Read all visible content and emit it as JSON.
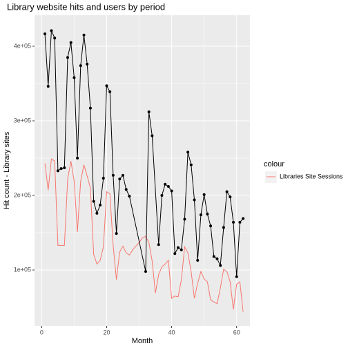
{
  "chart_data": {
    "type": "line",
    "title": "Library website hits and users by period",
    "x_label": "Month",
    "y_label": "Hit count - Library sites",
    "legend_title": "colour",
    "xlim": [
      -2.2,
      64.1
    ],
    "xticks": [
      0,
      20,
      40,
      60
    ],
    "ylim": [
      25000,
      441667
    ],
    "yticks": [
      {
        "value": 100000,
        "label": "1e+05"
      },
      {
        "value": 200000,
        "label": "2e+05"
      },
      {
        "value": 300000,
        "label": "3e+05"
      },
      {
        "value": 400000,
        "label": "4e+05"
      }
    ],
    "grid": true,
    "series": [
      {
        "color": "#000000",
        "points": true,
        "x": [
          1,
          2,
          3,
          4,
          5,
          6,
          7,
          8,
          9,
          10,
          11,
          12,
          13,
          14,
          15,
          16,
          17,
          18,
          19,
          20,
          21,
          22,
          23,
          24,
          25,
          26,
          27,
          32,
          33,
          34,
          36,
          37,
          38,
          39,
          40,
          41,
          42,
          43,
          44,
          45,
          46,
          47,
          48,
          49,
          50,
          51,
          52,
          53,
          54,
          55,
          56,
          57,
          58,
          59,
          60,
          61,
          62
        ],
        "values": [
          416700,
          346300,
          421000,
          411000,
          233000,
          236000,
          237000,
          385000,
          405000,
          358000,
          250000,
          374000,
          415000,
          376000,
          317000,
          192000,
          176000,
          187000,
          223000,
          347000,
          339000,
          227000,
          149000,
          222000,
          227000,
          208000,
          199000,
          98000,
          312000,
          280000,
          134000,
          200000,
          215000,
          212000,
          206000,
          122000,
          130000,
          127000,
          168000,
          258000,
          241000,
          194000,
          113000,
          174000,
          201000,
          175000,
          159000,
          118000,
          115000,
          106000,
          157000,
          205000,
          198000,
          164000,
          91000,
          164000,
          169000
        ]
      },
      {
        "name": "Libraries Site Sessions",
        "color": "#f8766d",
        "points": false,
        "x": [
          1,
          2,
          3,
          4,
          5,
          6,
          7,
          8,
          9,
          10,
          11,
          12,
          13,
          14,
          15,
          16,
          17,
          18,
          19,
          20,
          21,
          22,
          23,
          24,
          25,
          26,
          27,
          28,
          29,
          30,
          31,
          32,
          33,
          34,
          35,
          36,
          37,
          38,
          39,
          40,
          41,
          42,
          43,
          44,
          45,
          46,
          47,
          48,
          49,
          50,
          51,
          52,
          53,
          54,
          55,
          56,
          57,
          58,
          59,
          60,
          61,
          62
        ],
        "values": [
          243000,
          207000,
          249000,
          246000,
          133000,
          133000,
          133000,
          222000,
          246000,
          219000,
          151000,
          219000,
          241000,
          226000,
          210000,
          121000,
          108000,
          113000,
          131000,
          205000,
          202000,
          133000,
          87000,
          124000,
          132000,
          123000,
          120000,
          127000,
          132000,
          137000,
          143000,
          145000,
          137000,
          112000,
          69000,
          94000,
          104000,
          108000,
          113000,
          62000,
          65000,
          64000,
          87000,
          131000,
          123000,
          98000,
          62000,
          82000,
          98000,
          88000,
          84000,
          60000,
          57000,
          55000,
          76000,
          101000,
          98000,
          84000,
          47000,
          81000,
          84000,
          44000
        ]
      }
    ]
  }
}
